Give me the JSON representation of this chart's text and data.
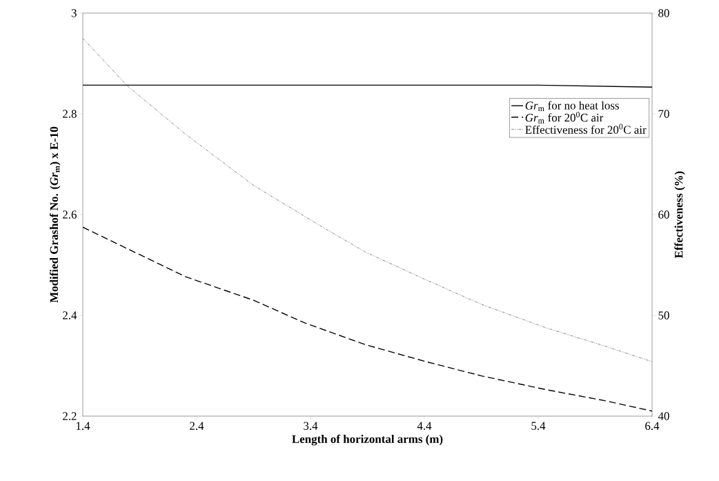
{
  "chart_data": {
    "type": "line",
    "xlabel": "Length of horizontal arms (m)",
    "ylabel": "Modified Grashof No. (*Gr*$_{m}$) x E-10",
    "y2label": "Effectiveness (%)",
    "xlim": [
      1.4,
      6.4
    ],
    "xticks": [
      1.4,
      2.4,
      3.4,
      4.4,
      5.4,
      6.4
    ],
    "ylim": [
      2.2,
      3
    ],
    "yticks": [
      {
        "value": 2.2,
        "label": "2.2"
      },
      {
        "value": 2.4,
        "label": "2.4"
      },
      {
        "value": 2.6,
        "label": "2.6"
      },
      {
        "value": 2.8,
        "label": "2.8"
      },
      {
        "value": 3,
        "label": "3"
      }
    ],
    "y2lim": [
      40,
      80
    ],
    "y2ticks": [
      40,
      50,
      60,
      70,
      80
    ],
    "grid": false,
    "legend": "right",
    "marker": "none",
    "series": [
      {
        "name": "*Gr*$_{m}$ for no heat loss",
        "color": "#000000",
        "line_style": "solid",
        "x": [
          1.4,
          2.4,
          3.4,
          4.4,
          5.4,
          5.9,
          6.4
        ],
        "values": [
          2.857,
          2.857,
          2.857,
          2.857,
          2.857,
          2.855,
          2.853
        ]
      },
      {
        "name": "*Gr*$_{m}$ for 20$^{0}$C air",
        "color": "#000000",
        "line_style": "dashed",
        "x": [
          1.4,
          2.3,
          2.9,
          3.35,
          3.88,
          4.4,
          4.9,
          5.46,
          6.0,
          6.4
        ],
        "values": [
          2.575,
          2.477,
          2.43,
          2.385,
          2.342,
          2.309,
          2.28,
          2.253,
          2.23,
          2.21
        ]
      },
      {
        "name": "Effectiveness for 20$^{0}$C air",
        "color": "#333333",
        "line_style": "dotted",
        "axis": "y2",
        "x": [
          1.4,
          1.79,
          2.3,
          2.9,
          3.5,
          3.88,
          4.4,
          4.9,
          5.46,
          6.0,
          6.4
        ],
        "values": [
          77.5,
          72.8,
          68.0,
          62.9,
          58.8,
          56.3,
          53.6,
          51.1,
          48.8,
          46.9,
          45.4
        ]
      }
    ]
  }
}
